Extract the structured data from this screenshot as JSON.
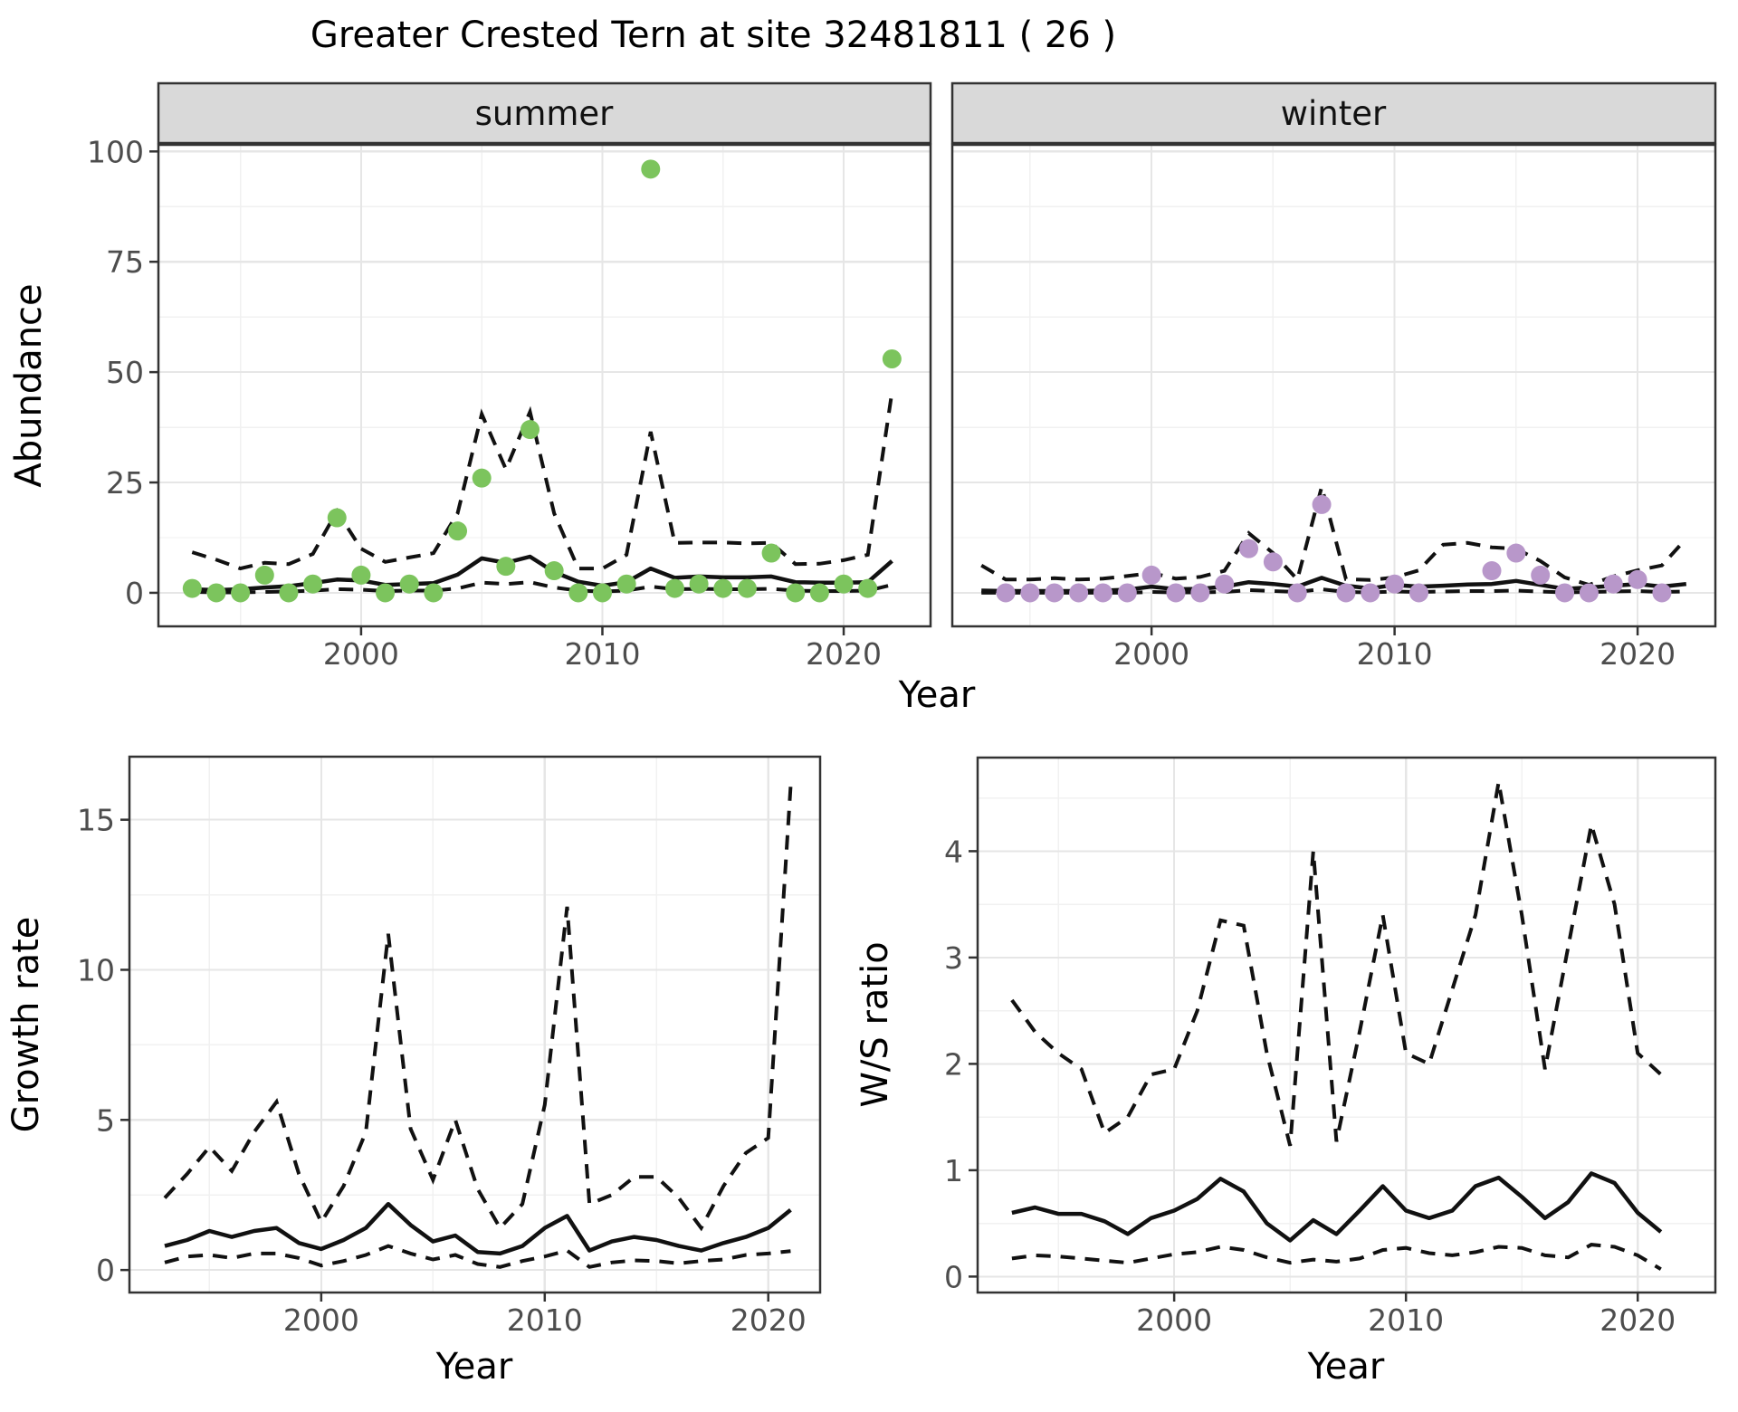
{
  "title": "Greater Crested Tern at site 32481811 ( 26 )",
  "axis_titles": {
    "abundance": "Abundance",
    "year": "Year",
    "growth_rate": "Growth rate",
    "ws_ratio": "W/S ratio"
  },
  "colors": {
    "summer_point": "#7cc45d",
    "winter_point": "#b897ca",
    "line": "#111111",
    "grid_major": "#e6e6e6",
    "grid_minor": "#f1f1f1",
    "panel_border": "#333333",
    "strip_bg": "#d9d9d9",
    "tick_text": "#4d4d4d"
  },
  "chart_data": [
    {
      "id": "abundance_summer",
      "type": "line",
      "facet": "summer",
      "ylabel": "Abundance",
      "xlabel": "Year",
      "x": {
        "lim": [
          1991.6,
          2023.6
        ],
        "major": [
          2000,
          2010,
          2020
        ],
        "minor": [
          1995,
          2005,
          2015
        ],
        "show_labels": true
      },
      "y": {
        "lim": [
          -7.6,
          101.5
        ],
        "major": [
          0,
          25,
          50,
          75,
          100
        ],
        "minor": [
          12.5,
          37.5,
          62.5,
          87.5
        ],
        "show_labels": true
      },
      "series": {
        "years": [
          1993,
          1994,
          1995,
          1996,
          1997,
          1998,
          1999,
          2000,
          2001,
          2002,
          2003,
          2004,
          2005,
          2006,
          2007,
          2008,
          2009,
          2010,
          2011,
          2012,
          2013,
          2014,
          2015,
          2016,
          2017,
          2018,
          2019,
          2020,
          2021,
          2022
        ],
        "median": [
          0.8,
          0.6,
          0.8,
          1.2,
          1.5,
          2.2,
          3.0,
          2.8,
          1.8,
          2.0,
          2.2,
          4.1,
          7.8,
          6.8,
          8.2,
          4.7,
          2.5,
          1.6,
          2.4,
          5.5,
          3.4,
          3.7,
          3.5,
          3.5,
          3.7,
          2.4,
          2.3,
          2.3,
          2.4,
          7.2
        ],
        "upper": [
          9.2,
          7.5,
          5.5,
          6.8,
          6.5,
          8.8,
          18.5,
          10,
          7,
          8,
          9,
          18,
          40.5,
          28,
          41,
          18,
          5.5,
          5.5,
          8.6,
          36.5,
          11.3,
          11.4,
          11.4,
          11.2,
          11.3,
          6.5,
          6.6,
          7.4,
          8.6,
          45.5
        ],
        "lower": [
          0.2,
          0.1,
          0.1,
          0.2,
          0.3,
          0.5,
          0.8,
          0.7,
          0.4,
          0.5,
          0.5,
          1.0,
          2.3,
          2.0,
          2.4,
          1.2,
          0.5,
          0.3,
          0.5,
          1.4,
          0.8,
          0.9,
          0.8,
          0.8,
          0.9,
          0.5,
          0.4,
          0.4,
          0.5,
          1.8
        ]
      },
      "points": {
        "color": "#7cc45d",
        "years": [
          1993,
          1994,
          1995,
          1996,
          1997,
          1998,
          1999,
          2000,
          2001,
          2002,
          2003,
          2004,
          2005,
          2006,
          2007,
          2008,
          2009,
          2010,
          2011,
          2012,
          2013,
          2014,
          2015,
          2016,
          2017,
          2018,
          2019,
          2020,
          2021,
          2022
        ],
        "values": [
          1,
          0,
          0,
          4,
          0,
          2,
          17,
          4,
          0,
          2,
          0,
          14,
          26,
          6,
          37,
          5,
          0,
          0,
          2,
          96,
          1,
          2,
          1,
          1,
          9,
          0,
          0,
          2,
          1,
          53
        ]
      }
    },
    {
      "id": "abundance_winter",
      "type": "line",
      "facet": "winter",
      "ylabel": "Abundance",
      "xlabel": "Year",
      "x": {
        "lim": [
          1991.8,
          2023.2
        ],
        "major": [
          2000,
          2010,
          2020
        ],
        "minor": [
          1995,
          2005,
          2015
        ],
        "show_labels": true
      },
      "y": {
        "lim": [
          -7.6,
          101.5
        ],
        "major": [
          0,
          25,
          50,
          75,
          100
        ],
        "minor": [
          12.5,
          37.5,
          62.5,
          87.5
        ],
        "show_labels": false
      },
      "series": {
        "years": [
          1993,
          1994,
          1995,
          1996,
          1997,
          1998,
          1999,
          2000,
          2001,
          2002,
          2003,
          2004,
          2005,
          2006,
          2007,
          2008,
          2009,
          2010,
          2011,
          2012,
          2013,
          2014,
          2015,
          2016,
          2017,
          2018,
          2019,
          2020,
          2021,
          2022
        ],
        "median": [
          0.5,
          0.4,
          0.4,
          0.4,
          0.4,
          0.5,
          0.7,
          1.4,
          0.8,
          0.9,
          1.4,
          2.4,
          2.0,
          1.4,
          3.4,
          1.6,
          1.0,
          1.8,
          1.4,
          1.6,
          1.9,
          2.0,
          2.7,
          1.8,
          0.9,
          1.2,
          1.6,
          2.0,
          1.4,
          2.0
        ],
        "upper": [
          6.2,
          3.0,
          3.0,
          3.3,
          3.0,
          3.2,
          3.8,
          4.5,
          3.2,
          3.6,
          5.0,
          13.5,
          9.0,
          3.0,
          24.0,
          3.1,
          2.9,
          3.5,
          5.1,
          10.9,
          11.3,
          10.3,
          10.0,
          7.2,
          3.5,
          1.8,
          3.7,
          5.1,
          6.2,
          12.3
        ],
        "lower": [
          0,
          0,
          0,
          0,
          0,
          0,
          0,
          0.2,
          0.1,
          0.1,
          0.2,
          0.6,
          0.4,
          0.2,
          0.8,
          0.2,
          0.1,
          0.3,
          0.2,
          0.3,
          0.4,
          0.4,
          0.5,
          0.3,
          0.1,
          0.2,
          0.3,
          0.4,
          0.2,
          0.3
        ]
      },
      "points": {
        "color": "#b897ca",
        "years": [
          1994,
          1995,
          1996,
          1997,
          1998,
          1999,
          2000,
          2001,
          2002,
          2003,
          2004,
          2005,
          2006,
          2007,
          2008,
          2009,
          2010,
          2011,
          2014,
          2015,
          2016,
          2017,
          2018,
          2019,
          2020,
          2021
        ],
        "values": [
          0,
          0,
          0,
          0,
          0,
          0,
          4,
          0,
          0,
          2,
          10,
          7,
          0,
          20,
          0,
          0,
          2,
          0,
          5,
          9,
          4,
          0,
          0,
          2,
          3,
          0
        ]
      }
    },
    {
      "id": "growth_rate",
      "type": "line",
      "facet": null,
      "ylabel": "Growth rate",
      "xlabel": "Year",
      "x": {
        "lim": [
          1991.42,
          2022.32
        ],
        "major": [
          2000,
          2010,
          2020
        ],
        "minor": [
          1995,
          2005,
          2015
        ],
        "show_labels": true
      },
      "y": {
        "lim": [
          -0.75,
          17.1
        ],
        "major": [
          0,
          5,
          10,
          15
        ],
        "minor": [
          2.5,
          7.5,
          12.5
        ],
        "show_labels": true
      },
      "series": {
        "years": [
          1993,
          1994,
          1995,
          1996,
          1997,
          1998,
          1999,
          2000,
          2001,
          2002,
          2003,
          2004,
          2005,
          2006,
          2007,
          2008,
          2009,
          2010,
          2011,
          2012,
          2013,
          2014,
          2015,
          2016,
          2017,
          2018,
          2019,
          2020,
          2021
        ],
        "median": [
          0.8,
          1.0,
          1.3,
          1.1,
          1.3,
          1.4,
          0.9,
          0.7,
          1.0,
          1.4,
          2.2,
          1.5,
          0.95,
          1.15,
          0.6,
          0.55,
          0.8,
          1.4,
          1.8,
          0.65,
          0.95,
          1.1,
          1.0,
          0.8,
          0.65,
          0.9,
          1.1,
          1.4,
          2.0
        ],
        "upper": [
          2.4,
          3.2,
          4.1,
          3.3,
          4.6,
          5.6,
          3.2,
          1.6,
          2.8,
          4.6,
          11.2,
          4.7,
          3.0,
          5.0,
          2.7,
          1.4,
          2.2,
          5.5,
          12.1,
          2.2,
          2.5,
          3.1,
          3.1,
          2.4,
          1.4,
          2.8,
          3.9,
          4.4,
          16.1
        ],
        "lower": [
          0.25,
          0.45,
          0.5,
          0.4,
          0.55,
          0.55,
          0.4,
          0.15,
          0.3,
          0.5,
          0.8,
          0.55,
          0.35,
          0.5,
          0.2,
          0.1,
          0.3,
          0.45,
          0.65,
          0.1,
          0.25,
          0.32,
          0.3,
          0.22,
          0.3,
          0.35,
          0.5,
          0.55,
          0.63
        ]
      },
      "points": {
        "color": "#7cc45d",
        "years": [],
        "values": []
      }
    },
    {
      "id": "ws_ratio",
      "type": "line",
      "facet": null,
      "ylabel": "W/S ratio",
      "xlabel": "Year",
      "x": {
        "lim": [
          1991.52,
          2023.35
        ],
        "major": [
          2000,
          2010,
          2020
        ],
        "minor": [
          1995,
          2005,
          2015
        ],
        "show_labels": true
      },
      "y": {
        "lim": [
          -0.15,
          4.88
        ],
        "major": [
          0,
          1,
          2,
          3,
          4
        ],
        "minor": [
          0.5,
          1.5,
          2.5,
          3.5,
          4.5
        ],
        "show_labels": true
      },
      "series": {
        "years": [
          1993,
          1994,
          1995,
          1996,
          1997,
          1998,
          1999,
          2000,
          2001,
          2002,
          2003,
          2004,
          2005,
          2006,
          2007,
          2008,
          2009,
          2010,
          2011,
          2012,
          2013,
          2014,
          2015,
          2016,
          2017,
          2018,
          2019,
          2020,
          2021
        ],
        "median": [
          0.6,
          0.65,
          0.59,
          0.59,
          0.52,
          0.4,
          0.55,
          0.62,
          0.73,
          0.92,
          0.8,
          0.5,
          0.34,
          0.53,
          0.4,
          0.62,
          0.85,
          0.62,
          0.55,
          0.62,
          0.85,
          0.93,
          0.75,
          0.55,
          0.7,
          0.97,
          0.88,
          0.6,
          0.42
        ],
        "upper": [
          2.6,
          2.3,
          2.1,
          1.95,
          1.35,
          1.5,
          1.9,
          1.95,
          2.5,
          3.35,
          3.3,
          2.1,
          1.23,
          4.0,
          1.27,
          2.3,
          3.4,
          2.1,
          2.0,
          2.7,
          3.4,
          4.65,
          3.4,
          1.95,
          3.1,
          4.25,
          3.5,
          2.1,
          1.9
        ],
        "lower": [
          0.17,
          0.2,
          0.19,
          0.17,
          0.15,
          0.13,
          0.17,
          0.21,
          0.23,
          0.28,
          0.25,
          0.18,
          0.13,
          0.16,
          0.14,
          0.17,
          0.25,
          0.27,
          0.22,
          0.2,
          0.23,
          0.28,
          0.27,
          0.2,
          0.18,
          0.3,
          0.28,
          0.2,
          0.07
        ]
      },
      "points": {
        "color": "#b897ca",
        "years": [],
        "values": []
      }
    }
  ]
}
